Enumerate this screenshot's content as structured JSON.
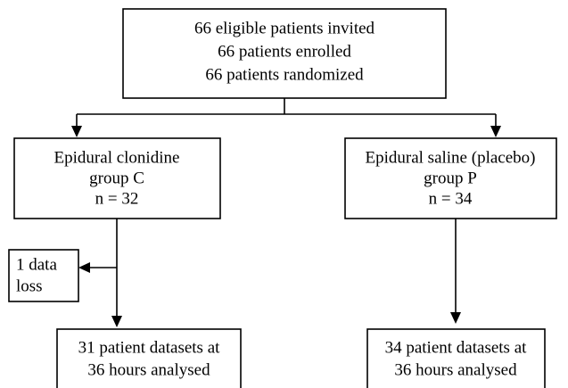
{
  "nodes": [
    {
      "lines": [
        "66 eligible patients invited",
        "66 patients enrolled",
        "66 patients randomized"
      ]
    },
    {
      "lines": [
        "Epidural clonidine",
        "group C",
        "n = 32"
      ]
    },
    {
      "lines": [
        "Epidural saline (placebo)",
        "group P",
        "n = 34"
      ]
    },
    {
      "lines": [
        "1 data",
        "loss"
      ]
    },
    {
      "lines": [
        "31 patient datasets at",
        "36 hours analysed"
      ]
    },
    {
      "lines": [
        "34 patient datasets at",
        "36 hours analysed"
      ]
    }
  ]
}
